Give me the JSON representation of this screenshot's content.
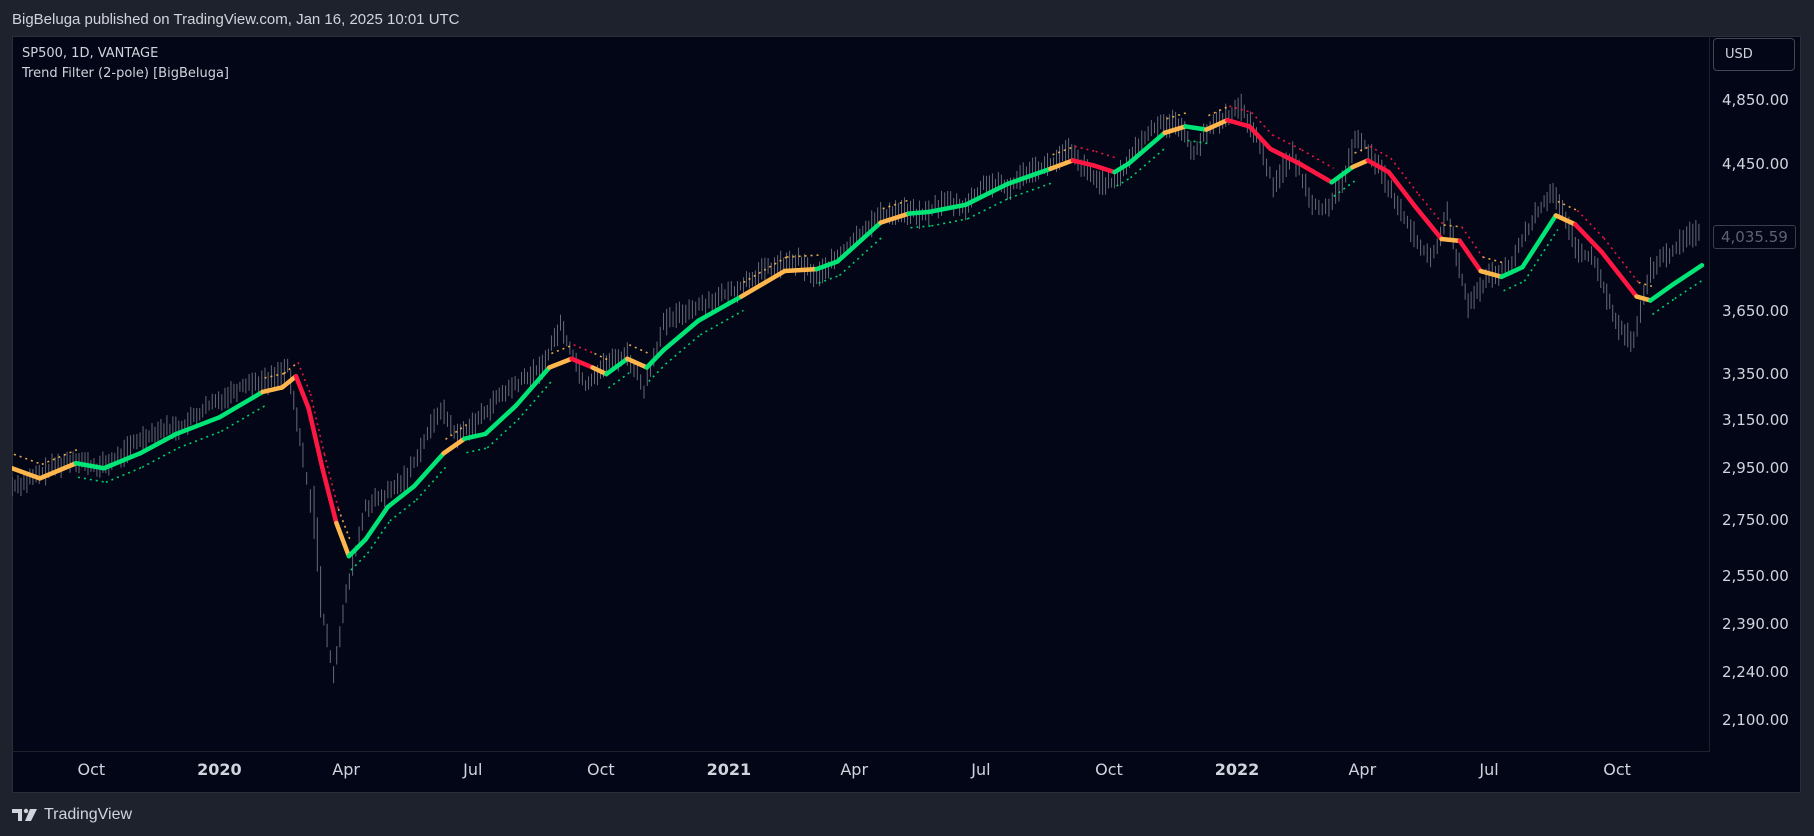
{
  "header": {
    "publish_line": "BigBeluga published on TradingView.com, Jan 16, 2025 10:01 UTC"
  },
  "legend": {
    "symbol_line": "SP500, 1D, VANTAGE",
    "indicator_line": "Trend Filter (2-pole) [BigBeluga]"
  },
  "currency_button": {
    "label": "USD"
  },
  "footer": {
    "brand": "TradingView",
    "logo_icon": "tradingview-logo-icon"
  },
  "colors": {
    "background": "#020617",
    "price_bars": "#787b86",
    "trend_up": "#00e676",
    "trend_mid": "#ffb74d",
    "trend_down": "#ff1744",
    "axis_text": "#d1d4dc"
  },
  "chart_data": {
    "type": "line",
    "title": "SP500, 1D, VANTAGE",
    "subtitle": "Trend Filter (2-pole) [BigBeluga]",
    "xlabel": "",
    "ylabel": "",
    "y_scale": "log",
    "ylim": [
      1960,
      5200
    ],
    "grid": false,
    "legend": "top-left",
    "last_price_label": "4,035.59",
    "price_ticks": [
      {
        "value": 4850,
        "label": "4,850.00"
      },
      {
        "value": 4450,
        "label": "4,450.00"
      },
      {
        "value": 3650,
        "label": "3,650.00"
      },
      {
        "value": 3350,
        "label": "3,350.00"
      },
      {
        "value": 3150,
        "label": "3,150.00"
      },
      {
        "value": 2950,
        "label": "2,950.00"
      },
      {
        "value": 2750,
        "label": "2,750.00"
      },
      {
        "value": 2550,
        "label": "2,550.00"
      },
      {
        "value": 2390,
        "label": "2,390.00"
      },
      {
        "value": 2240,
        "label": "2,240.00"
      },
      {
        "value": 2100,
        "label": "2,100.00"
      }
    ],
    "last_price": 4035.59,
    "time_ticks": [
      {
        "date": "2019-10-01",
        "label": "Oct",
        "bold": false
      },
      {
        "date": "2020-01-01",
        "label": "2020",
        "bold": true
      },
      {
        "date": "2020-04-01",
        "label": "Apr",
        "bold": false
      },
      {
        "date": "2020-07-01",
        "label": "Jul",
        "bold": false
      },
      {
        "date": "2020-10-01",
        "label": "Oct",
        "bold": false
      },
      {
        "date": "2021-01-01",
        "label": "2021",
        "bold": true
      },
      {
        "date": "2021-04-01",
        "label": "Apr",
        "bold": false
      },
      {
        "date": "2021-07-01",
        "label": "Jul",
        "bold": false
      },
      {
        "date": "2021-10-01",
        "label": "Oct",
        "bold": false
      },
      {
        "date": "2022-01-01",
        "label": "2022",
        "bold": true
      },
      {
        "date": "2022-04-01",
        "label": "Apr",
        "bold": false
      },
      {
        "date": "2022-07-01",
        "label": "Jul",
        "bold": false
      },
      {
        "date": "2022-10-01",
        "label": "Oct",
        "bold": false
      }
    ],
    "x_range": [
      "2019-08-05",
      "2022-12-01"
    ],
    "series": [
      {
        "name": "SP500",
        "kind": "price",
        "points": [
          {
            "x": "2019-08-05",
            "y": 2880
          },
          {
            "x": "2019-08-20",
            "y": 2910
          },
          {
            "x": "2019-09-05",
            "y": 2960
          },
          {
            "x": "2019-09-20",
            "y": 2990
          },
          {
            "x": "2019-10-05",
            "y": 2950
          },
          {
            "x": "2019-10-20",
            "y": 2990
          },
          {
            "x": "2019-11-05",
            "y": 3070
          },
          {
            "x": "2019-11-20",
            "y": 3110
          },
          {
            "x": "2019-12-05",
            "y": 3120
          },
          {
            "x": "2019-12-20",
            "y": 3190
          },
          {
            "x": "2020-01-05",
            "y": 3250
          },
          {
            "x": "2020-01-20",
            "y": 3310
          },
          {
            "x": "2020-02-05",
            "y": 3320
          },
          {
            "x": "2020-02-19",
            "y": 3380
          },
          {
            "x": "2020-03-01",
            "y": 3000
          },
          {
            "x": "2020-03-09",
            "y": 2750
          },
          {
            "x": "2020-03-16",
            "y": 2400
          },
          {
            "x": "2020-03-23",
            "y": 2240
          },
          {
            "x": "2020-04-01",
            "y": 2480
          },
          {
            "x": "2020-04-15",
            "y": 2800
          },
          {
            "x": "2020-05-01",
            "y": 2850
          },
          {
            "x": "2020-05-15",
            "y": 2920
          },
          {
            "x": "2020-06-08",
            "y": 3200
          },
          {
            "x": "2020-06-20",
            "y": 3080
          },
          {
            "x": "2020-07-05",
            "y": 3150
          },
          {
            "x": "2020-07-20",
            "y": 3250
          },
          {
            "x": "2020-08-05",
            "y": 3320
          },
          {
            "x": "2020-08-20",
            "y": 3380
          },
          {
            "x": "2020-09-02",
            "y": 3580
          },
          {
            "x": "2020-09-20",
            "y": 3300
          },
          {
            "x": "2020-10-05",
            "y": 3400
          },
          {
            "x": "2020-10-20",
            "y": 3440
          },
          {
            "x": "2020-11-01",
            "y": 3280
          },
          {
            "x": "2020-11-15",
            "y": 3580
          },
          {
            "x": "2020-12-01",
            "y": 3650
          },
          {
            "x": "2020-12-20",
            "y": 3700
          },
          {
            "x": "2021-01-05",
            "y": 3750
          },
          {
            "x": "2021-01-20",
            "y": 3830
          },
          {
            "x": "2021-02-05",
            "y": 3880
          },
          {
            "x": "2021-02-20",
            "y": 3900
          },
          {
            "x": "2021-03-05",
            "y": 3820
          },
          {
            "x": "2021-03-20",
            "y": 3920
          },
          {
            "x": "2021-04-05",
            "y": 4050
          },
          {
            "x": "2021-04-20",
            "y": 4150
          },
          {
            "x": "2021-05-05",
            "y": 4180
          },
          {
            "x": "2021-05-20",
            "y": 4150
          },
          {
            "x": "2021-06-05",
            "y": 4230
          },
          {
            "x": "2021-06-20",
            "y": 4200
          },
          {
            "x": "2021-07-05",
            "y": 4340
          },
          {
            "x": "2021-07-20",
            "y": 4300
          },
          {
            "x": "2021-08-05",
            "y": 4420
          },
          {
            "x": "2021-08-20",
            "y": 4440
          },
          {
            "x": "2021-09-02",
            "y": 4530
          },
          {
            "x": "2021-09-20",
            "y": 4360
          },
          {
            "x": "2021-10-05",
            "y": 4330
          },
          {
            "x": "2021-10-20",
            "y": 4540
          },
          {
            "x": "2021-11-05",
            "y": 4700
          },
          {
            "x": "2021-11-20",
            "y": 4700
          },
          {
            "x": "2021-12-01",
            "y": 4520
          },
          {
            "x": "2021-12-15",
            "y": 4700
          },
          {
            "x": "2022-01-04",
            "y": 4800
          },
          {
            "x": "2022-01-15",
            "y": 4620
          },
          {
            "x": "2022-01-27",
            "y": 4330
          },
          {
            "x": "2022-02-10",
            "y": 4500
          },
          {
            "x": "2022-02-24",
            "y": 4230
          },
          {
            "x": "2022-03-08",
            "y": 4170
          },
          {
            "x": "2022-03-20",
            "y": 4400
          },
          {
            "x": "2022-03-29",
            "y": 4630
          },
          {
            "x": "2022-04-15",
            "y": 4400
          },
          {
            "x": "2022-05-01",
            "y": 4130
          },
          {
            "x": "2022-05-20",
            "y": 3900
          },
          {
            "x": "2022-06-01",
            "y": 4150
          },
          {
            "x": "2022-06-16",
            "y": 3670
          },
          {
            "x": "2022-07-01",
            "y": 3820
          },
          {
            "x": "2022-07-15",
            "y": 3860
          },
          {
            "x": "2022-08-01",
            "y": 4120
          },
          {
            "x": "2022-08-16",
            "y": 4300
          },
          {
            "x": "2022-09-01",
            "y": 3970
          },
          {
            "x": "2022-09-15",
            "y": 3900
          },
          {
            "x": "2022-09-30",
            "y": 3590
          },
          {
            "x": "2022-10-13",
            "y": 3490
          },
          {
            "x": "2022-10-25",
            "y": 3860
          },
          {
            "x": "2022-11-10",
            "y": 3960
          },
          {
            "x": "2022-11-20",
            "y": 4030
          },
          {
            "x": "2022-12-01",
            "y": 4080
          }
        ]
      },
      {
        "name": "Trend Filter",
        "kind": "trend",
        "points": [
          {
            "x": "2019-08-05",
            "y": 2950,
            "trend": "down"
          },
          {
            "x": "2019-08-25",
            "y": 2910,
            "trend": "mid"
          },
          {
            "x": "2019-09-20",
            "y": 2970,
            "trend": "mid"
          },
          {
            "x": "2019-10-10",
            "y": 2950,
            "trend": "up"
          },
          {
            "x": "2019-11-05",
            "y": 3010,
            "trend": "up"
          },
          {
            "x": "2019-12-01",
            "y": 3090,
            "trend": "up"
          },
          {
            "x": "2020-01-01",
            "y": 3160,
            "trend": "up"
          },
          {
            "x": "2020-02-01",
            "y": 3270,
            "trend": "up"
          },
          {
            "x": "2020-02-15",
            "y": 3290,
            "trend": "mid"
          },
          {
            "x": "2020-02-25",
            "y": 3340,
            "trend": "mid"
          },
          {
            "x": "2020-03-05",
            "y": 3200,
            "trend": "down"
          },
          {
            "x": "2020-03-15",
            "y": 2950,
            "trend": "down"
          },
          {
            "x": "2020-03-25",
            "y": 2740,
            "trend": "down"
          },
          {
            "x": "2020-04-03",
            "y": 2620,
            "trend": "mid"
          },
          {
            "x": "2020-04-15",
            "y": 2680,
            "trend": "up"
          },
          {
            "x": "2020-05-01",
            "y": 2800,
            "trend": "up"
          },
          {
            "x": "2020-05-20",
            "y": 2880,
            "trend": "up"
          },
          {
            "x": "2020-06-10",
            "y": 3010,
            "trend": "up"
          },
          {
            "x": "2020-06-25",
            "y": 3070,
            "trend": "mid"
          },
          {
            "x": "2020-07-10",
            "y": 3090,
            "trend": "up"
          },
          {
            "x": "2020-08-01",
            "y": 3210,
            "trend": "up"
          },
          {
            "x": "2020-08-25",
            "y": 3380,
            "trend": "up"
          },
          {
            "x": "2020-09-10",
            "y": 3420,
            "trend": "mid"
          },
          {
            "x": "2020-09-25",
            "y": 3380,
            "trend": "down"
          },
          {
            "x": "2020-10-05",
            "y": 3350,
            "trend": "mid"
          },
          {
            "x": "2020-10-20",
            "y": 3420,
            "trend": "up"
          },
          {
            "x": "2020-11-03",
            "y": 3380,
            "trend": "mid"
          },
          {
            "x": "2020-11-15",
            "y": 3460,
            "trend": "up"
          },
          {
            "x": "2020-12-10",
            "y": 3600,
            "trend": "up"
          },
          {
            "x": "2021-01-10",
            "y": 3720,
            "trend": "up"
          },
          {
            "x": "2021-02-10",
            "y": 3850,
            "trend": "mid"
          },
          {
            "x": "2021-03-05",
            "y": 3860,
            "trend": "mid"
          },
          {
            "x": "2021-03-20",
            "y": 3900,
            "trend": "up"
          },
          {
            "x": "2021-04-20",
            "y": 4110,
            "trend": "up"
          },
          {
            "x": "2021-05-10",
            "y": 4160,
            "trend": "mid"
          },
          {
            "x": "2021-05-25",
            "y": 4170,
            "trend": "up"
          },
          {
            "x": "2021-06-20",
            "y": 4210,
            "trend": "up"
          },
          {
            "x": "2021-07-20",
            "y": 4330,
            "trend": "up"
          },
          {
            "x": "2021-08-20",
            "y": 4420,
            "trend": "up"
          },
          {
            "x": "2021-09-05",
            "y": 4470,
            "trend": "mid"
          },
          {
            "x": "2021-09-20",
            "y": 4440,
            "trend": "down"
          },
          {
            "x": "2021-10-05",
            "y": 4400,
            "trend": "down"
          },
          {
            "x": "2021-10-15",
            "y": 4450,
            "trend": "up"
          },
          {
            "x": "2021-11-10",
            "y": 4640,
            "trend": "up"
          },
          {
            "x": "2021-11-25",
            "y": 4680,
            "trend": "mid"
          },
          {
            "x": "2021-12-10",
            "y": 4660,
            "trend": "up"
          },
          {
            "x": "2021-12-25",
            "y": 4720,
            "trend": "mid"
          },
          {
            "x": "2022-01-10",
            "y": 4680,
            "trend": "down"
          },
          {
            "x": "2022-01-25",
            "y": 4540,
            "trend": "down"
          },
          {
            "x": "2022-02-15",
            "y": 4450,
            "trend": "down"
          },
          {
            "x": "2022-03-10",
            "y": 4340,
            "trend": "down"
          },
          {
            "x": "2022-03-25",
            "y": 4430,
            "trend": "up"
          },
          {
            "x": "2022-04-05",
            "y": 4470,
            "trend": "mid"
          },
          {
            "x": "2022-04-20",
            "y": 4400,
            "trend": "down"
          },
          {
            "x": "2022-05-10",
            "y": 4190,
            "trend": "down"
          },
          {
            "x": "2022-05-28",
            "y": 4020,
            "trend": "down"
          },
          {
            "x": "2022-06-10",
            "y": 4010,
            "trend": "mid"
          },
          {
            "x": "2022-06-25",
            "y": 3850,
            "trend": "down"
          },
          {
            "x": "2022-07-10",
            "y": 3820,
            "trend": "mid"
          },
          {
            "x": "2022-07-25",
            "y": 3870,
            "trend": "up"
          },
          {
            "x": "2022-08-18",
            "y": 4150,
            "trend": "up"
          },
          {
            "x": "2022-09-01",
            "y": 4100,
            "trend": "mid"
          },
          {
            "x": "2022-09-20",
            "y": 3950,
            "trend": "down"
          },
          {
            "x": "2022-10-15",
            "y": 3720,
            "trend": "down"
          },
          {
            "x": "2022-10-25",
            "y": 3700,
            "trend": "mid"
          },
          {
            "x": "2022-11-10",
            "y": 3780,
            "trend": "up"
          },
          {
            "x": "2022-12-01",
            "y": 3880,
            "trend": "up"
          }
        ]
      }
    ]
  }
}
